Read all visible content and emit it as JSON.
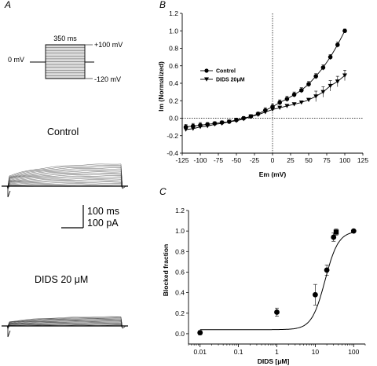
{
  "panels": {
    "a": {
      "letter": "A"
    },
    "b": {
      "letter": "B"
    },
    "c": {
      "letter": "C"
    }
  },
  "protocol": {
    "duration": "350 ms",
    "top_voltage": "+100 mV",
    "holding": "0 mV",
    "bottom_voltage": "-120 mV"
  },
  "traces": {
    "control_label": "Control",
    "dids_label": "DIDS 20 μM"
  },
  "scale_bar": {
    "time": "100 ms",
    "current": "100 pA"
  },
  "colors": {
    "ink": "#000000",
    "trace": "#333333",
    "protocol_fill": "#dcdcdc",
    "background": "#ffffff"
  },
  "chart_data": [
    {
      "type": "line",
      "panel": "B",
      "xlabel": "Em (mV)",
      "ylabel": "Im (Normalized)",
      "xlim": [
        -125,
        125
      ],
      "ylim": [
        -0.4,
        1.2
      ],
      "xticks": [
        -125,
        -100,
        -75,
        -50,
        -25,
        0,
        25,
        50,
        75,
        100,
        125
      ],
      "yticks": [
        -0.4,
        -0.2,
        0.0,
        0.2,
        0.4,
        0.6,
        0.8,
        1.0,
        1.2
      ],
      "x": [
        -120,
        -110,
        -100,
        -90,
        -80,
        -70,
        -60,
        -50,
        -40,
        -30,
        -20,
        -10,
        0,
        10,
        20,
        30,
        40,
        50,
        60,
        70,
        80,
        90,
        100
      ],
      "legend_position": "upper-left",
      "series": [
        {
          "name": "Control",
          "marker": "circle",
          "values": [
            -0.1,
            -0.09,
            -0.08,
            -0.07,
            -0.06,
            -0.05,
            -0.04,
            -0.02,
            0.0,
            0.02,
            0.05,
            0.09,
            0.13,
            0.18,
            0.22,
            0.27,
            0.32,
            0.39,
            0.48,
            0.58,
            0.7,
            0.84,
            1.0
          ],
          "errors": [
            0.03,
            0.03,
            0.03,
            0.02,
            0.02,
            0.02,
            0.02,
            0.02,
            0.02,
            0.02,
            0.02,
            0.03,
            0.03,
            0.03,
            0.03,
            0.03,
            0.03,
            0.03,
            0.03,
            0.03,
            0.03,
            0.03,
            0.02
          ]
        },
        {
          "name": "DIDS 20μM",
          "marker": "triangle-down",
          "values": [
            -0.13,
            -0.12,
            -0.1,
            -0.09,
            -0.07,
            -0.06,
            -0.04,
            -0.03,
            -0.01,
            0.02,
            0.04,
            0.07,
            0.1,
            0.12,
            0.14,
            0.16,
            0.18,
            0.21,
            0.25,
            0.3,
            0.37,
            0.42,
            0.49
          ]
        }
      ]
    },
    {
      "type": "scatter",
      "panel": "C",
      "xlabel": "DIDS [μM]",
      "ylabel": "Blocked fraction",
      "xscale": "log",
      "xlim": [
        0.005,
        200
      ],
      "ylim": [
        -0.1,
        1.2
      ],
      "xticks": [
        0.01,
        0.1,
        1,
        10,
        100
      ],
      "xtick_labels": [
        "0.01",
        "0.1",
        "1",
        "10",
        "100"
      ],
      "yticks": [
        0.0,
        0.2,
        0.4,
        0.6,
        0.8,
        1.0,
        1.2
      ],
      "points": [
        {
          "x": 0.01,
          "y": 0.01,
          "err": 0.02,
          "marker": "circle"
        },
        {
          "x": 1,
          "y": 0.21,
          "err": 0.04,
          "marker": "circle"
        },
        {
          "x": 10,
          "y": 0.38,
          "err": 0.1,
          "marker": "circle"
        },
        {
          "x": 20,
          "y": 0.62,
          "err": 0.05,
          "marker": "circle"
        },
        {
          "x": 30,
          "y": 0.94,
          "err": 0.04,
          "marker": "circle"
        },
        {
          "x": 35,
          "y": 0.99,
          "err": 0.03,
          "marker": "square"
        },
        {
          "x": 100,
          "y": 1.0,
          "err": 0.01,
          "marker": "circle"
        }
      ],
      "fit": {
        "bottom": 0.04,
        "top": 1.0,
        "ic50": 18,
        "hill": 2.5
      }
    }
  ]
}
